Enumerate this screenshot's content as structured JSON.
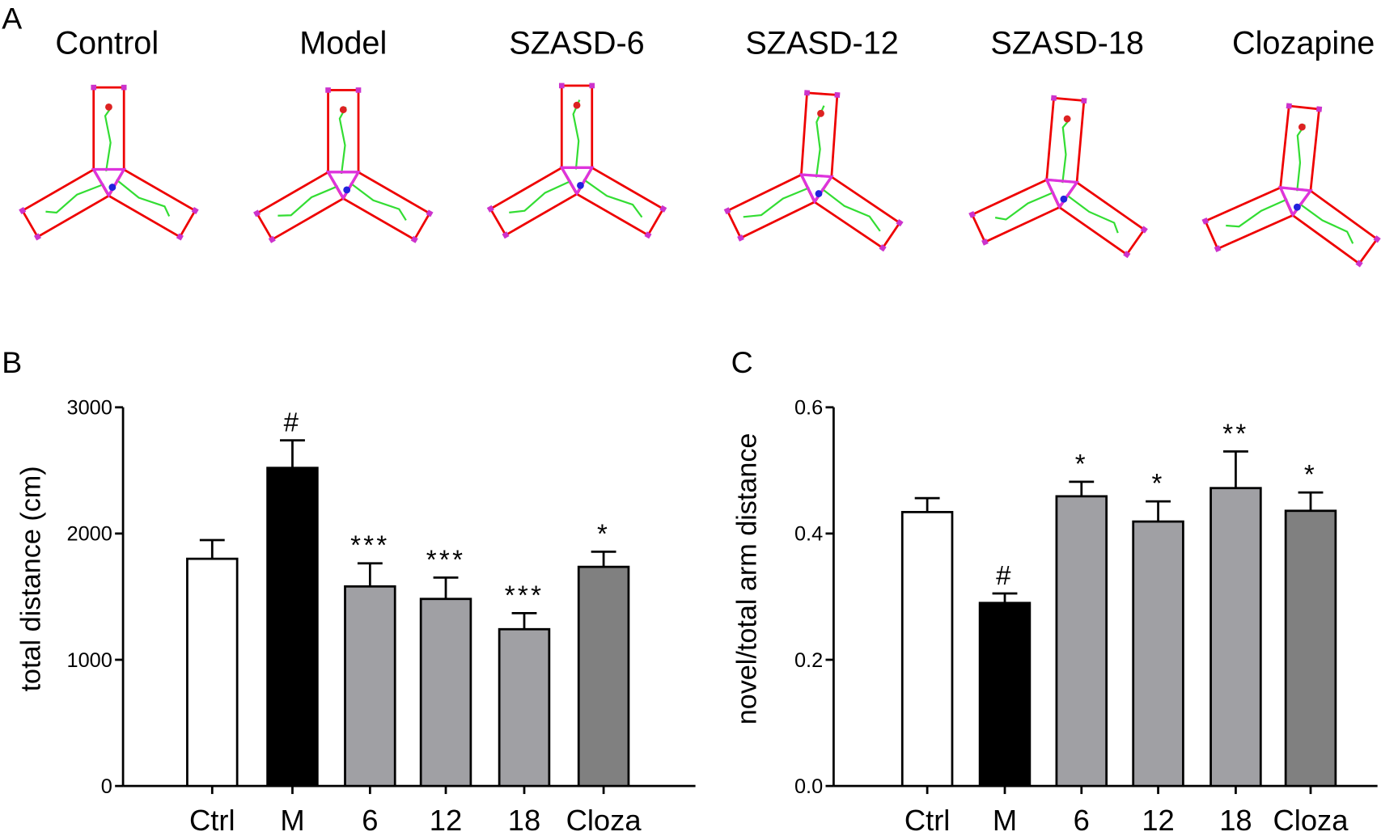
{
  "panel_a": {
    "letter": "A",
    "labels": [
      "Control",
      "Model",
      "SZASD-6",
      "SZASD-12",
      "SZASD-18",
      "Clozapine"
    ]
  },
  "chart_data": [
    {
      "type": "bar",
      "panel": "B",
      "y_label": "total distance (cm)",
      "categories": [
        "Ctrl",
        "M",
        "6",
        "12",
        "18",
        "Cloza"
      ],
      "values": [
        1800,
        2520,
        1581,
        1482,
        1242,
        1736
      ],
      "errors": [
        148,
        218,
        183,
        169,
        127,
        120
      ],
      "colors": [
        "#ffffff",
        "#000000",
        "#a0a0a4",
        "#a0a0a4",
        "#a0a0a4",
        "#808080"
      ],
      "annotations": [
        null,
        "#",
        "***",
        "***",
        "***",
        "*"
      ],
      "ylim": [
        0,
        3000
      ],
      "yticks": [
        0,
        1000,
        2000,
        3000
      ]
    },
    {
      "type": "bar",
      "panel": "C",
      "y_label": "novel/total arm distance",
      "categories": [
        "Ctrl",
        "M",
        "6",
        "12",
        "18",
        "Cloza"
      ],
      "values": [
        0.434,
        0.29,
        0.459,
        0.419,
        0.472,
        0.436
      ],
      "errors": [
        0.022,
        0.015,
        0.023,
        0.032,
        0.058,
        0.029
      ],
      "colors": [
        "#ffffff",
        "#000000",
        "#a0a0a4",
        "#a0a0a4",
        "#a0a0a4",
        "#808080"
      ],
      "annotations": [
        null,
        "#",
        "*",
        "*",
        "**",
        "*"
      ],
      "ylim": [
        0,
        0.6
      ],
      "yticks": [
        {
          "value": 0,
          "label": "0.0"
        },
        0.2,
        0.4,
        0.6
      ]
    }
  ]
}
